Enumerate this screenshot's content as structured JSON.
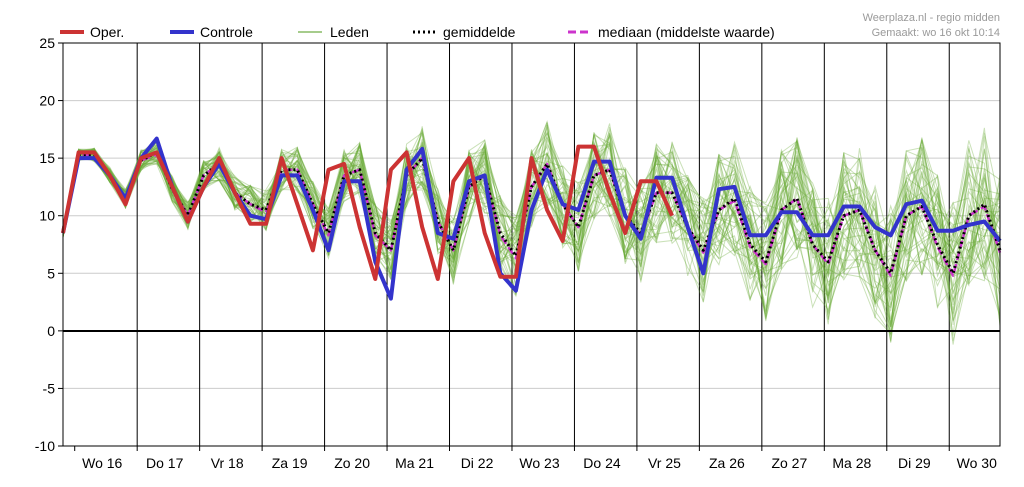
{
  "credit": {
    "line1": "Weerplaza.nl - regio midden",
    "line2": "Gemaakt: wo 16 okt 10:14"
  },
  "colors": {
    "oper": "#cc3333",
    "controle": "#3333cc",
    "leden": "#66aa33",
    "gemiddelde": "#000000",
    "mediaan": "#cc33cc",
    "zero_line": "#000000",
    "day_grid": "#000000",
    "h_grid": "#cccccc"
  },
  "chart_data": {
    "type": "line",
    "title": "",
    "xlabel": "",
    "ylabel": "",
    "ylim": [
      -10,
      25
    ],
    "yticks": [
      -10,
      -5,
      0,
      5,
      10,
      15,
      20,
      25
    ],
    "grid": true,
    "legend_position": "top",
    "day_labels": [
      "Wo 16",
      "Do 17",
      "Vr 18",
      "Za 19",
      "Zo 20",
      "Ma 21",
      "Di 22",
      "Wo 23",
      "Do 24",
      "Vr 25",
      "Za 26",
      "Zo 27",
      "Ma 28",
      "Di 29",
      "Wo 30"
    ],
    "steps_per_day": 4,
    "series": [
      {
        "name": "Oper.",
        "style": "thick",
        "color": "#cc3333",
        "values": [
          8.5,
          15.5,
          15.5,
          13.5,
          11.0,
          15.0,
          15.5,
          12.5,
          9.5,
          12.5,
          15.0,
          12.0,
          9.3,
          9.3,
          15.0,
          11.0,
          7.0,
          14.0,
          14.5,
          9.0,
          4.5,
          14.0,
          15.5,
          9.0,
          4.5,
          13.0,
          15.0,
          8.5,
          4.7,
          4.7,
          15.0,
          10.5,
          7.8,
          16.0,
          16.0,
          12.0,
          8.5,
          13.0,
          13.0,
          10.0
        ]
      },
      {
        "name": "Controle",
        "style": "thick",
        "color": "#3333cc",
        "values": [
          8.5,
          15.0,
          15.0,
          13.5,
          11.5,
          15.0,
          16.7,
          12.5,
          9.5,
          12.5,
          14.5,
          12.0,
          10.0,
          9.7,
          13.5,
          13.5,
          10.5,
          7.0,
          13.0,
          13.0,
          6.0,
          2.8,
          14.0,
          15.8,
          8.5,
          8.0,
          13.0,
          13.5,
          5.0,
          3.5,
          10.5,
          14.0,
          11.0,
          10.5,
          14.7,
          14.7,
          10.0,
          8.0,
          13.3,
          13.3,
          9.0,
          5.0,
          12.3,
          12.5,
          8.3,
          8.3,
          10.3,
          10.3,
          8.3,
          8.3,
          10.8,
          10.8,
          9.0,
          8.3,
          11.0,
          11.3,
          8.7,
          8.7,
          9.2,
          9.5,
          7.8
        ]
      },
      {
        "name": "Leden",
        "style": "thin",
        "color": "#66aa33",
        "values": []
      },
      {
        "name": "gemiddelde",
        "style": "dotted",
        "color": "#000000",
        "values": [
          8.5,
          15.3,
          15.3,
          13.5,
          11.5,
          14.8,
          15.5,
          12.3,
          10.0,
          13.5,
          14.5,
          12.0,
          11.0,
          10.5,
          14.0,
          14.0,
          11.0,
          8.5,
          13.5,
          14.0,
          8.5,
          7.0,
          13.5,
          15.0,
          9.5,
          7.0,
          12.5,
          13.5,
          8.5,
          6.5,
          12.5,
          14.5,
          11.0,
          9.0,
          13.5,
          14.0,
          10.0,
          8.5,
          12.0,
          12.0,
          9.0,
          7.0,
          10.5,
          11.5,
          7.5,
          6.0,
          10.5,
          11.5,
          7.5,
          6.0,
          10.0,
          10.5,
          7.0,
          5.0,
          10.0,
          10.8,
          7.5,
          5.0,
          10.0,
          11.0,
          7.0
        ]
      },
      {
        "name": "mediaan (middelste waarde)",
        "style": "dashed",
        "color": "#cc33cc",
        "values": [
          8.5,
          15.3,
          15.3,
          13.5,
          11.5,
          14.8,
          15.3,
          12.3,
          10.0,
          13.5,
          14.5,
          12.0,
          11.0,
          10.3,
          14.0,
          14.0,
          11.0,
          8.3,
          13.5,
          14.0,
          8.3,
          7.0,
          13.5,
          15.0,
          9.5,
          7.0,
          12.5,
          13.5,
          8.3,
          6.3,
          12.5,
          14.5,
          11.0,
          9.0,
          13.5,
          14.0,
          10.0,
          8.3,
          12.0,
          12.0,
          9.0,
          6.8,
          10.5,
          11.3,
          7.3,
          5.8,
          10.5,
          11.5,
          7.5,
          5.8,
          10.0,
          10.5,
          7.0,
          4.8,
          10.0,
          10.8,
          7.3,
          4.8,
          10.0,
          10.8,
          6.8
        ]
      }
    ]
  }
}
